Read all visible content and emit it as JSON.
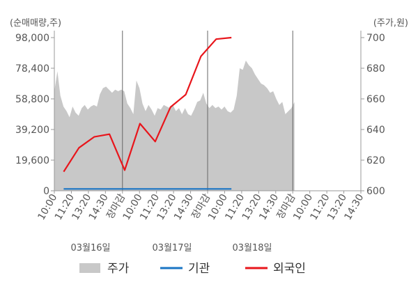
{
  "chart_data": {
    "type": "line",
    "left_axis": {
      "unit_label": "(순매매량,주)",
      "ticks": [
        "98,000",
        "78,400",
        "58,800",
        "39,200",
        "19,600",
        "0"
      ],
      "tick_values": [
        98000,
        78400,
        58800,
        39200,
        19600,
        0
      ],
      "ylim": [
        0,
        98000
      ]
    },
    "right_axis": {
      "unit_label": "(주가,원)",
      "ticks": [
        "700",
        "680",
        "660",
        "640",
        "620",
        "600"
      ],
      "tick_values": [
        700,
        680,
        660,
        640,
        620,
        600
      ],
      "ylim": [
        600,
        700
      ]
    },
    "x_ticks": [
      {
        "label": "10:00",
        "red": false
      },
      {
        "label": "11:20",
        "red": false
      },
      {
        "label": "13:20",
        "red": false
      },
      {
        "label": "14:30",
        "red": false
      },
      {
        "label": "장마감",
        "red": true
      },
      {
        "label": "10:00",
        "red": false
      },
      {
        "label": "11:20",
        "red": false
      },
      {
        "label": "13:20",
        "red": false
      },
      {
        "label": "14:30",
        "red": false
      },
      {
        "label": "장마감",
        "red": true
      },
      {
        "label": "10:00",
        "red": false
      },
      {
        "label": "11:20",
        "red": false
      },
      {
        "label": "13:20",
        "red": false
      },
      {
        "label": "14:30",
        "red": false
      },
      {
        "label": "장마감",
        "red": true
      },
      {
        "label": "10:00",
        "red": false
      },
      {
        "label": "11:20",
        "red": false
      },
      {
        "label": "13:20",
        "red": false
      },
      {
        "label": "14:30",
        "red": false
      }
    ],
    "day_labels": [
      "03월16일",
      "03월17일",
      "03월18일"
    ],
    "series": [
      {
        "name": "주가",
        "axis": "right",
        "color": "#c8c8c8",
        "kind": "area",
        "values": [
          665,
          678,
          662,
          655,
          652,
          648,
          655,
          651,
          649,
          654,
          656,
          653,
          655,
          656,
          655,
          663,
          667,
          668,
          666,
          664,
          666,
          665,
          666,
          665,
          657,
          654,
          650,
          672,
          667,
          657,
          652,
          656,
          653,
          649,
          654,
          653,
          656,
          655,
          654,
          656,
          652,
          654,
          650,
          654,
          650,
          649,
          653,
          658,
          659,
          664,
          657,
          654,
          656,
          654,
          655,
          653,
          655,
          652,
          651,
          653,
          662,
          680,
          679,
          685,
          682,
          680,
          676,
          673,
          670,
          669,
          667,
          664,
          665,
          660,
          656,
          658,
          650,
          652,
          654,
          658
        ]
      },
      {
        "name": "기관",
        "axis": "left",
        "color": "#1a75c4",
        "kind": "line",
        "x": [
          0,
          1,
          2,
          3,
          4,
          5,
          6,
          7,
          8,
          9,
          10,
          11
        ],
        "values": [
          1200,
          1200,
          1200,
          1200,
          1200,
          1200,
          1200,
          1200,
          1200,
          1200,
          1200,
          1200
        ]
      },
      {
        "name": "외국인",
        "axis": "left",
        "color": "#e8151b",
        "kind": "line",
        "x": [
          0,
          1,
          2,
          3,
          4,
          5,
          6,
          7,
          8,
          9,
          10,
          11
        ],
        "values": [
          12200,
          27500,
          34500,
          36200,
          13200,
          43000,
          31500,
          53500,
          61500,
          86000,
          97000,
          98000
        ]
      }
    ],
    "grid": {
      "vertical_day_lines": true,
      "horizontal": false
    },
    "legend_position": "bottom"
  }
}
